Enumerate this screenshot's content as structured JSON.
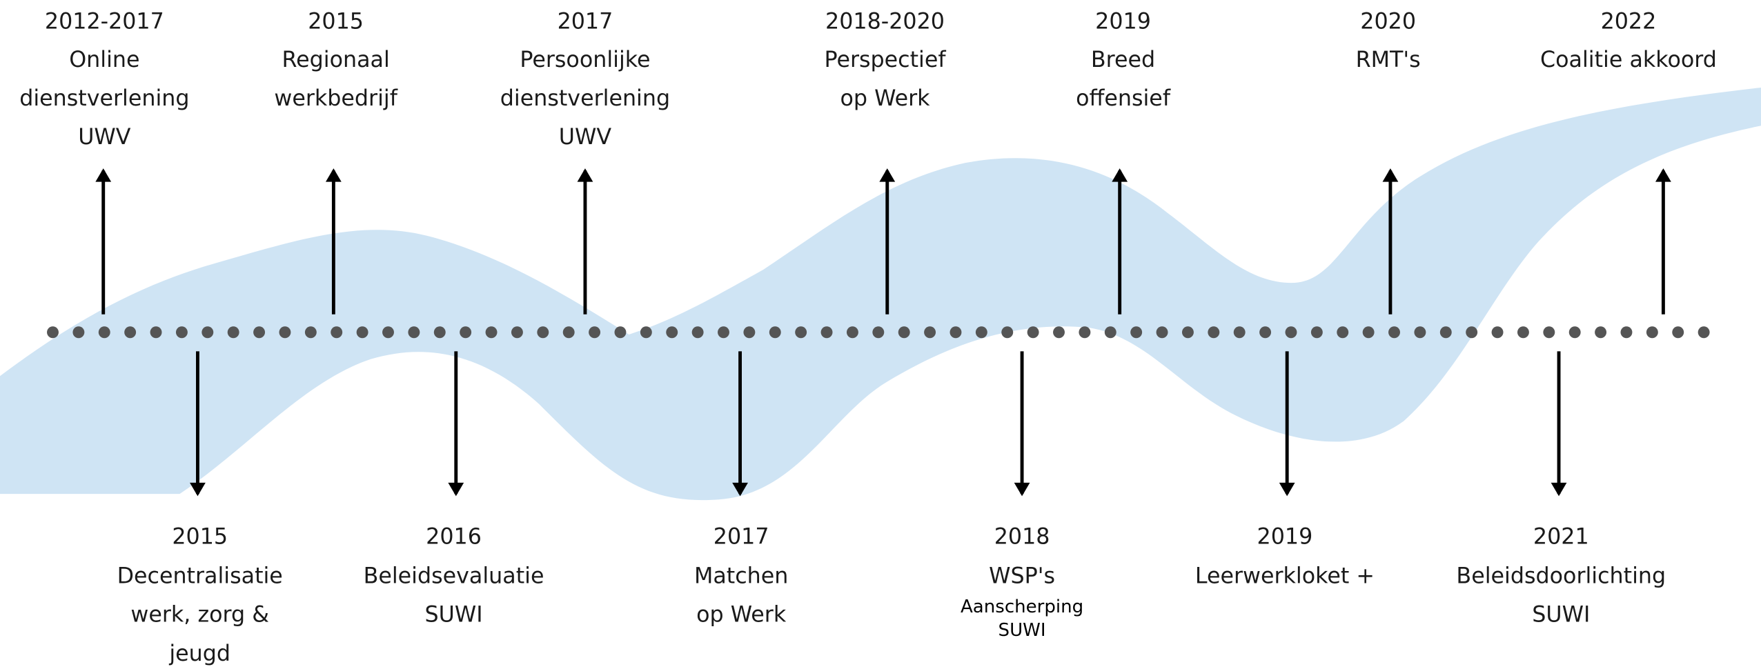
{
  "top_events": [
    {
      "year": "2012-2017",
      "lines": [
        "Online",
        "dienstverlening",
        "UWV"
      ]
    },
    {
      "year": "2015",
      "lines": [
        "Regionaal",
        "werkbedrijf"
      ]
    },
    {
      "year": "2017",
      "lines": [
        "Persoonlijke",
        "dienstverlening",
        "UWV"
      ]
    },
    {
      "year": "2018-2020",
      "lines": [
        "Perspectief",
        "op Werk"
      ]
    },
    {
      "year": "2019",
      "lines": [
        "Breed",
        "offensief"
      ]
    },
    {
      "year": "2020",
      "lines": [
        "RMT's"
      ]
    },
    {
      "year": "2022",
      "lines": [
        "Coalitie akkoord"
      ]
    }
  ],
  "bottom_events": [
    {
      "year": "2015",
      "lines": [
        "Decentralisatie",
        "werk, zorg &",
        "jeugd"
      ]
    },
    {
      "year": "2016",
      "lines": [
        "Beleidsevaluatie",
        "SUWI"
      ]
    },
    {
      "year": "2017",
      "lines": [
        "Matchen",
        "op Werk"
      ]
    },
    {
      "year": "2018",
      "lines": [
        "WSP's"
      ],
      "note": [
        "Aanscherping",
        "SUWI"
      ]
    },
    {
      "year": "2019",
      "lines": [
        "Leerwerkloket +"
      ]
    },
    {
      "year": "2021",
      "lines": [
        "Beleidsdoorlichting",
        "SUWI"
      ]
    }
  ]
}
